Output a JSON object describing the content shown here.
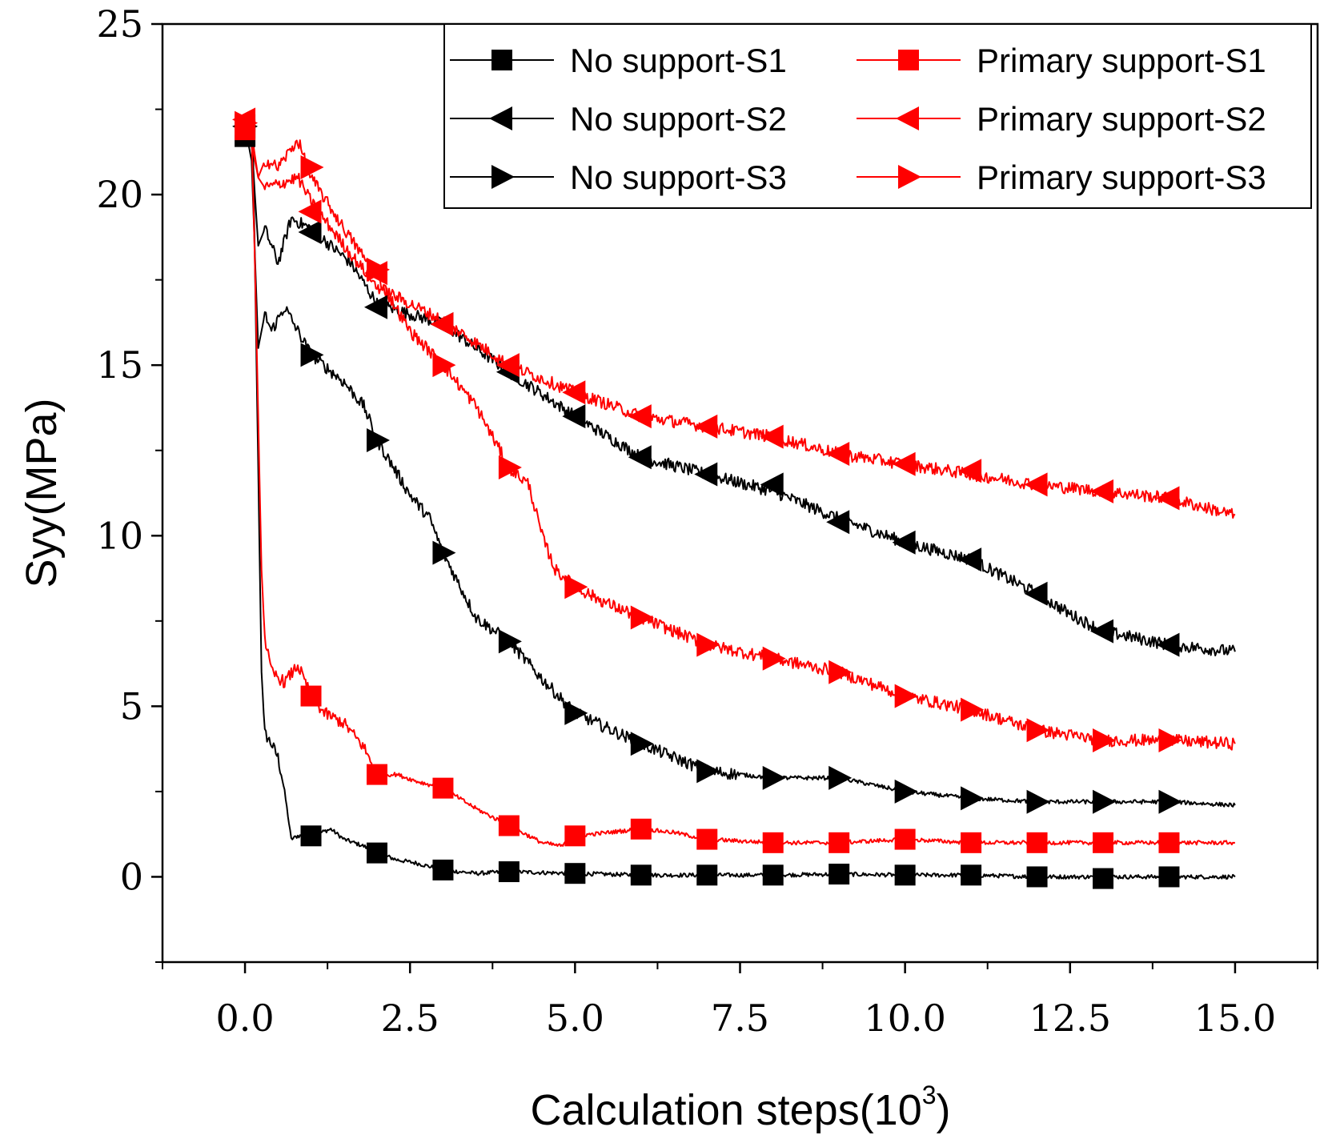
{
  "chart_data": {
    "type": "line",
    "title": "",
    "xlabel": "Calculation steps(10",
    "xlabel_sup": "3",
    "xlabel_end": ")",
    "ylabel": "Syy(MPa)",
    "xlim": [
      -1.25,
      16.25
    ],
    "ylim": [
      -2.5,
      25
    ],
    "xticks": [
      "0.0",
      "2.5",
      "5.0",
      "7.5",
      "10.0",
      "12.5",
      "15.0"
    ],
    "xtick_values": [
      0,
      2.5,
      5,
      7.5,
      10,
      12.5,
      15
    ],
    "yticks": [
      "0",
      "5",
      "10",
      "15",
      "20",
      "25"
    ],
    "ytick_values": [
      0,
      5,
      10,
      15,
      20,
      25
    ],
    "legend_position": "top-right",
    "series": [
      {
        "name": "No support-S1",
        "color": "#000000",
        "marker": "square",
        "x": [
          0,
          0.12,
          0.2,
          0.25,
          0.3,
          0.4,
          0.5,
          0.6,
          0.7,
          0.8,
          1.0,
          1.3,
          1.5,
          1.8,
          2.0,
          2.3,
          2.6,
          3.0,
          3.5,
          4.0,
          5.0,
          6.0,
          7.0,
          8.0,
          9.0,
          10.0,
          11.0,
          12.0,
          13.0,
          14.0,
          15.0
        ],
        "y": [
          21.8,
          21.6,
          12.0,
          6.0,
          4.2,
          3.9,
          3.5,
          2.5,
          1.1,
          1.2,
          1.2,
          1.4,
          1.1,
          0.9,
          0.7,
          0.5,
          0.4,
          0.2,
          0.1,
          0.15,
          0.1,
          0.05,
          0.05,
          0.05,
          0.08,
          0.05,
          0.05,
          0.0,
          0.0,
          0.0,
          0.0
        ],
        "marker_x": [
          0,
          1,
          2,
          3,
          4,
          5,
          6,
          7,
          8,
          9,
          10,
          11,
          12,
          13,
          14
        ],
        "marker_y": [
          21.7,
          1.2,
          0.7,
          0.2,
          0.15,
          0.1,
          0.05,
          0.05,
          0.05,
          0.08,
          0.05,
          0.05,
          0.0,
          -0.05,
          0.0
        ]
      },
      {
        "name": "No support-S2",
        "color": "#000000",
        "marker": "triangle-left",
        "x": [
          0,
          0.1,
          0.2,
          0.3,
          0.4,
          0.5,
          0.7,
          1.0,
          1.3,
          1.6,
          2.0,
          2.5,
          3.0,
          3.5,
          4.0,
          5.0,
          6.0,
          7.0,
          8.0,
          9.0,
          10.0,
          11.0,
          11.5,
          12.0,
          12.5,
          13.0,
          14.0,
          15.0
        ],
        "y": [
          22.0,
          21.5,
          18.5,
          19.0,
          18.5,
          18.0,
          19.3,
          19.0,
          18.5,
          18.0,
          16.8,
          16.5,
          16.2,
          15.5,
          14.8,
          13.5,
          12.3,
          11.8,
          11.3,
          10.5,
          9.8,
          9.3,
          8.8,
          8.3,
          7.7,
          7.2,
          6.8,
          6.6
        ],
        "marker_x": [
          0,
          1,
          2,
          3,
          4,
          5,
          6,
          7,
          8,
          9,
          10,
          11,
          12,
          13,
          14
        ],
        "marker_y": [
          22.0,
          18.9,
          16.7,
          16.2,
          14.8,
          13.5,
          12.3,
          11.8,
          11.5,
          10.4,
          9.8,
          9.3,
          8.3,
          7.2,
          6.8
        ]
      },
      {
        "name": "No support-S3",
        "color": "#000000",
        "marker": "triangle-right",
        "x": [
          0,
          0.1,
          0.2,
          0.3,
          0.4,
          0.6,
          0.8,
          1.0,
          1.5,
          1.8,
          2.0,
          2.5,
          2.8,
          3.0,
          3.5,
          4.0,
          4.5,
          5.0,
          6.0,
          7.0,
          8.0,
          9.0,
          10.0,
          11.0,
          12.0,
          13.0,
          14.0,
          15.0
        ],
        "y": [
          22.0,
          21.0,
          15.5,
          16.5,
          16.0,
          16.7,
          16.0,
          15.3,
          14.5,
          13.8,
          12.8,
          11.2,
          10.5,
          9.5,
          7.6,
          6.9,
          5.8,
          4.8,
          3.9,
          3.1,
          2.9,
          2.9,
          2.5,
          2.3,
          2.2,
          2.2,
          2.2,
          2.1
        ],
        "marker_x": [
          0,
          1,
          2,
          3,
          4,
          5,
          6,
          7,
          8,
          9,
          10,
          11,
          12,
          13,
          14
        ],
        "marker_y": [
          22.0,
          15.3,
          12.8,
          9.5,
          6.9,
          4.8,
          3.9,
          3.1,
          2.9,
          2.9,
          2.5,
          2.3,
          2.2,
          2.2,
          2.2
        ]
      },
      {
        "name": "Primary support-S1",
        "color": "#ff0000",
        "marker": "square",
        "x": [
          0,
          0.1,
          0.15,
          0.25,
          0.3,
          0.4,
          0.6,
          0.8,
          1.0,
          1.2,
          1.5,
          1.8,
          2.0,
          2.3,
          2.6,
          3.0,
          3.5,
          4.0,
          4.5,
          4.8,
          5.0,
          5.5,
          6.0,
          6.5,
          7.0,
          8.0,
          9.0,
          10.0,
          11.0,
          12.0,
          13.0,
          14.0,
          15.0
        ],
        "y": [
          22.0,
          21.8,
          18.0,
          9.0,
          7.0,
          6.0,
          5.7,
          6.2,
          5.3,
          4.8,
          4.5,
          3.8,
          3.0,
          3.0,
          2.8,
          2.6,
          2.0,
          1.5,
          1.0,
          0.9,
          1.2,
          1.3,
          1.4,
          1.3,
          1.1,
          1.0,
          1.0,
          1.1,
          1.0,
          1.0,
          1.0,
          1.0,
          1.0
        ],
        "marker_x": [
          0,
          1,
          2,
          3,
          4,
          5,
          6,
          7,
          8,
          9,
          10,
          11,
          12,
          13,
          14
        ],
        "marker_y": [
          21.9,
          5.3,
          3.0,
          2.6,
          1.5,
          1.2,
          1.4,
          1.1,
          1.0,
          1.0,
          1.1,
          1.0,
          1.0,
          1.0,
          1.0
        ]
      },
      {
        "name": "Primary support-S2",
        "color": "#ff0000",
        "marker": "triangle-left",
        "x": [
          0,
          0.1,
          0.2,
          0.3,
          0.5,
          0.8,
          1.0,
          1.5,
          2.0,
          2.5,
          3.0,
          4.0,
          5.0,
          6.0,
          7.0,
          8.0,
          9.0,
          10.0,
          11.0,
          12.0,
          13.0,
          14.0,
          15.0
        ],
        "y": [
          22.2,
          21.8,
          20.5,
          20.2,
          20.3,
          20.5,
          19.8,
          18.5,
          17.3,
          16.8,
          16.3,
          15.0,
          14.2,
          13.5,
          13.2,
          12.9,
          12.4,
          12.1,
          11.8,
          11.5,
          11.3,
          11.1,
          10.6
        ],
        "marker_x": [
          0,
          1,
          2,
          3,
          4,
          5,
          6,
          7,
          8,
          9,
          10,
          11,
          12,
          13,
          14
        ],
        "marker_y": [
          22.2,
          19.5,
          17.7,
          16.2,
          15.0,
          14.2,
          13.5,
          13.2,
          12.9,
          12.4,
          12.1,
          11.9,
          11.5,
          11.3,
          11.1
        ]
      },
      {
        "name": "Primary support-S3",
        "color": "#ff0000",
        "marker": "triangle-right",
        "x": [
          0,
          0.1,
          0.2,
          0.3,
          0.5,
          0.8,
          1.0,
          1.5,
          2.0,
          2.5,
          3.0,
          3.5,
          4.0,
          4.3,
          4.5,
          4.7,
          5.0,
          5.5,
          6.0,
          7.0,
          8.0,
          9.0,
          10.0,
          11.0,
          12.0,
          13.0,
          14.0,
          15.0
        ],
        "y": [
          22.1,
          21.5,
          20.5,
          21.0,
          20.8,
          21.6,
          20.5,
          19.0,
          17.6,
          16.0,
          15.0,
          13.8,
          12.0,
          11.5,
          10.0,
          9.0,
          8.5,
          8.0,
          7.6,
          6.8,
          6.4,
          6.0,
          5.3,
          4.9,
          4.3,
          4.0,
          4.0,
          3.9
        ],
        "marker_x": [
          0,
          1,
          2,
          3,
          4,
          5,
          6,
          7,
          8,
          9,
          10,
          11,
          12,
          13,
          14
        ],
        "marker_y": [
          22.1,
          20.8,
          17.8,
          15.0,
          12.0,
          8.5,
          7.6,
          6.8,
          6.4,
          6.0,
          5.3,
          4.9,
          4.3,
          4.0,
          4.0
        ]
      }
    ]
  }
}
